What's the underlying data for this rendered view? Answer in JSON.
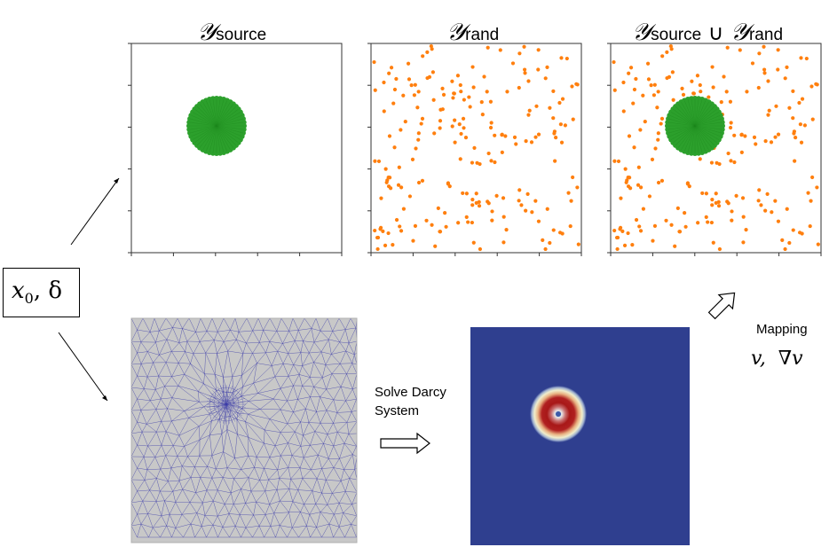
{
  "panels": {
    "source": {
      "title_script": "𝒴",
      "title_sub": "source"
    },
    "rand": {
      "title_script": "𝒴",
      "title_sub": "rand"
    },
    "union": {
      "title_script": "𝒴",
      "title_sub": "source",
      "union_symbol": "∪",
      "title_script2": "𝒴",
      "title_sub2": "rand"
    }
  },
  "input_box": {
    "label_x": "x",
    "label_sub": "0",
    "label_rest": ", δ"
  },
  "solve": {
    "line1": "Solve Darcy",
    "line2": "System"
  },
  "mapping": {
    "label": "Mapping",
    "formula": "v,  ∇v"
  },
  "colors": {
    "source_points": "#2ca02c",
    "rand_points": "#ff7f0e",
    "mesh_fill": "#c8c8c8",
    "mesh_edges": "#3a3aa8",
    "field_background": "#2f3f8f"
  }
}
